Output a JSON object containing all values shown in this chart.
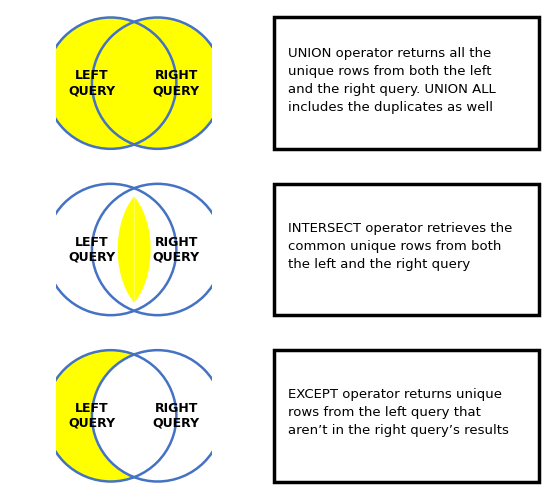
{
  "yellow": "#FFFF00",
  "white": "#FFFFFF",
  "blue_edge": "#4472C4",
  "black": "#000000",
  "bg": "#FFFFFF",
  "figsize": [
    5.59,
    4.99
  ],
  "dpi": 100,
  "rows": [
    {
      "type": "union",
      "title": "UNION operator returns all the\nunique rows from both the left\nand the right query. UNION ALL\nincludes the duplicates as well"
    },
    {
      "type": "intersect",
      "title": "INTERSECT operator retrieves the\ncommon unique rows from both\nthe left and the right query"
    },
    {
      "type": "except",
      "title": "EXCEPT operator returns unique\nrows from the left query that\naren’t in the right query’s results"
    }
  ],
  "left_label": "LEFT\nQUERY",
  "right_label": "RIGHT\nQUERY",
  "label_fontsize": 9,
  "desc_fontsize": 9.5
}
